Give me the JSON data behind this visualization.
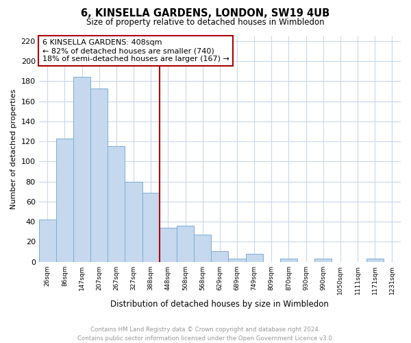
{
  "title": "6, KINSELLA GARDENS, LONDON, SW19 4UB",
  "subtitle": "Size of property relative to detached houses in Wimbledon",
  "xlabel": "Distribution of detached houses by size in Wimbledon",
  "ylabel": "Number of detached properties",
  "bar_color": "#c5d8ee",
  "bar_edge_color": "#7bafd4",
  "bin_labels": [
    "26sqm",
    "86sqm",
    "147sqm",
    "207sqm",
    "267sqm",
    "327sqm",
    "388sqm",
    "448sqm",
    "508sqm",
    "568sqm",
    "629sqm",
    "689sqm",
    "749sqm",
    "809sqm",
    "870sqm",
    "930sqm",
    "990sqm",
    "1050sqm",
    "1111sqm",
    "1171sqm",
    "1231sqm"
  ],
  "bar_values": [
    42,
    123,
    184,
    173,
    115,
    80,
    69,
    34,
    36,
    27,
    11,
    3,
    8,
    0,
    3,
    0,
    3,
    0,
    0,
    3,
    0
  ],
  "vline_bar_index": 6,
  "vline_color": "#aa0000",
  "annotation_title": "6 KINSELLA GARDENS: 408sqm",
  "annotation_line1": "← 82% of detached houses are smaller (740)",
  "annotation_line2": "18% of semi-detached houses are larger (167) →",
  "annotation_box_color": "#ffffff",
  "annotation_box_edge": "#aa0000",
  "ylim": [
    0,
    225
  ],
  "yticks": [
    0,
    20,
    40,
    60,
    80,
    100,
    120,
    140,
    160,
    180,
    200,
    220
  ],
  "background_color": "#ffffff",
  "grid_color": "#c8d8ec",
  "footer_line1": "Contains HM Land Registry data © Crown copyright and database right 2024.",
  "footer_line2": "Contains public sector information licensed under the Open Government Licence v3.0.",
  "footer_color": "#999999"
}
